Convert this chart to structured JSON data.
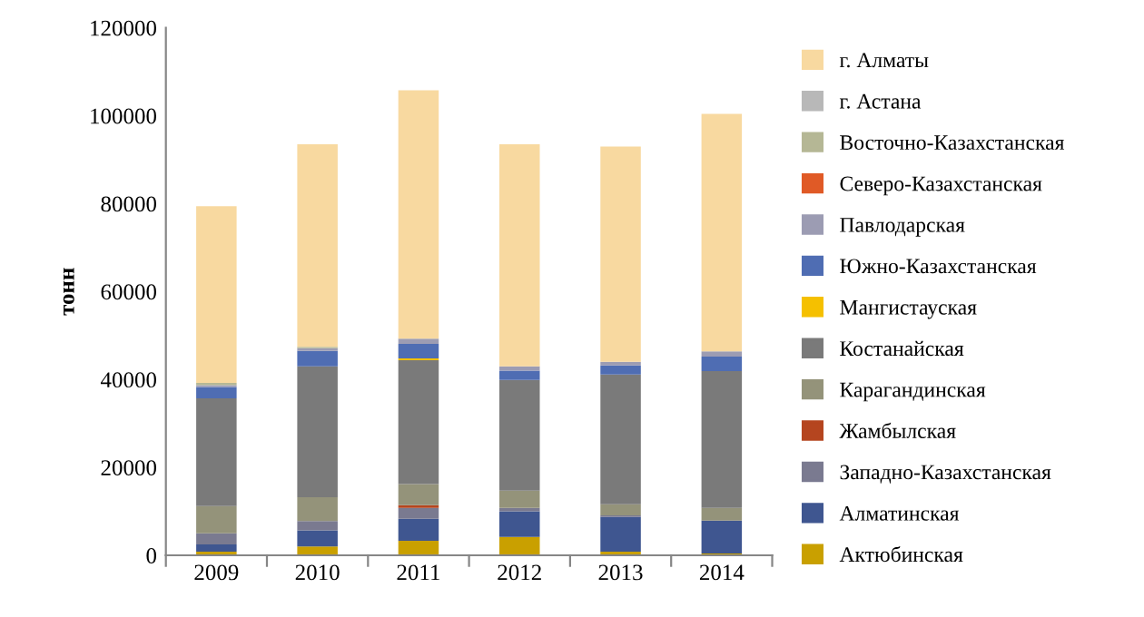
{
  "chart_data": {
    "type": "bar",
    "stacked": true,
    "ylabel": "тонн",
    "categories": [
      "2009",
      "2010",
      "2011",
      "2012",
      "2013",
      "2014"
    ],
    "ylim": [
      0,
      120000
    ],
    "yticks": [
      0,
      20000,
      40000,
      60000,
      80000,
      100000,
      120000
    ],
    "grid": false,
    "legend": "right",
    "series": [
      {
        "name": "Актюбинская",
        "color": "#c9a000",
        "values": [
          800,
          2000,
          3300,
          4200,
          800,
          400
        ]
      },
      {
        "name": "Алматинская",
        "color": "#3f5690",
        "values": [
          1700,
          3700,
          5000,
          5800,
          7900,
          7500
        ]
      },
      {
        "name": "Западно-Казахстанская",
        "color": "#7a7a90",
        "values": [
          2500,
          2100,
          2500,
          800,
          400,
          0
        ]
      },
      {
        "name": "Жамбылская",
        "color": "#b5451f",
        "values": [
          0,
          0,
          600,
          0,
          0,
          0
        ]
      },
      {
        "name": "Карагандинская",
        "color": "#94937a",
        "values": [
          6200,
          5400,
          4800,
          3900,
          2500,
          2900
        ]
      },
      {
        "name": "Костанайская",
        "color": "#7a7a7a",
        "values": [
          24500,
          29800,
          28200,
          25200,
          29500,
          31100
        ]
      },
      {
        "name": "Мангистауская",
        "color": "#f5c000",
        "values": [
          0,
          0,
          400,
          0,
          0,
          0
        ]
      },
      {
        "name": "Южно-Казахстанская",
        "color": "#4f6db3",
        "values": [
          2600,
          3500,
          3300,
          2100,
          2100,
          3300
        ]
      },
      {
        "name": "Павлодарская",
        "color": "#9c9cb3",
        "values": [
          400,
          600,
          1200,
          1000,
          800,
          1200
        ]
      },
      {
        "name": "Северо-Казахстанская",
        "color": "#e05a26",
        "values": [
          0,
          0,
          0,
          0,
          0,
          0
        ]
      },
      {
        "name": "Восточно-Казахстанская",
        "color": "#b5b795",
        "values": [
          500,
          300,
          0,
          0,
          0,
          0
        ]
      },
      {
        "name": "г. Астана",
        "color": "#b8b8b8",
        "values": [
          null,
          0,
          0,
          0,
          0,
          0
        ]
      },
      {
        "name": "г. Алматы",
        "color": "#f8d9a0",
        "values": [
          40200,
          46100,
          56500,
          50500,
          49000,
          54000
        ]
      }
    ]
  }
}
